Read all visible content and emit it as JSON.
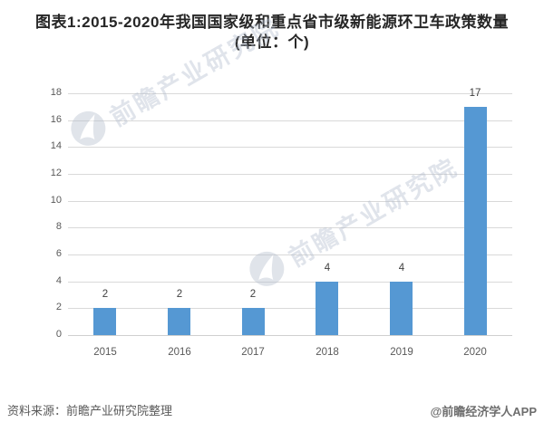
{
  "title": {
    "line1": "图表1:2015-2020年我国国家级和重点省市级新能源环卫车政策数量",
    "line2": "(单位：个)"
  },
  "chart_data": {
    "type": "bar",
    "categories": [
      "2015",
      "2016",
      "2017",
      "2018",
      "2019",
      "2020"
    ],
    "values": [
      2,
      2,
      2,
      4,
      4,
      17
    ],
    "title": "图表1:2015-2020年我国国家级和重点省市级新能源环卫车政策数量(单位：个)",
    "xlabel": "",
    "ylabel": "",
    "ylim": [
      0,
      18
    ],
    "ytick_step": 2,
    "grid": true,
    "legend": false,
    "data_labels": true,
    "bar_color": "#5598d3"
  },
  "watermark": {
    "text": "前瞻产业研究院"
  },
  "footer": {
    "source": "资料来源：前瞻产业研究院整理",
    "brand": "@前瞻经济学人APP"
  },
  "colors": {
    "bar": "#5598d3",
    "grid": "#d9d9d9",
    "tick_label": "#595959",
    "data_label": "#404040",
    "title": "#262626",
    "watermark": "#b2bccd"
  }
}
